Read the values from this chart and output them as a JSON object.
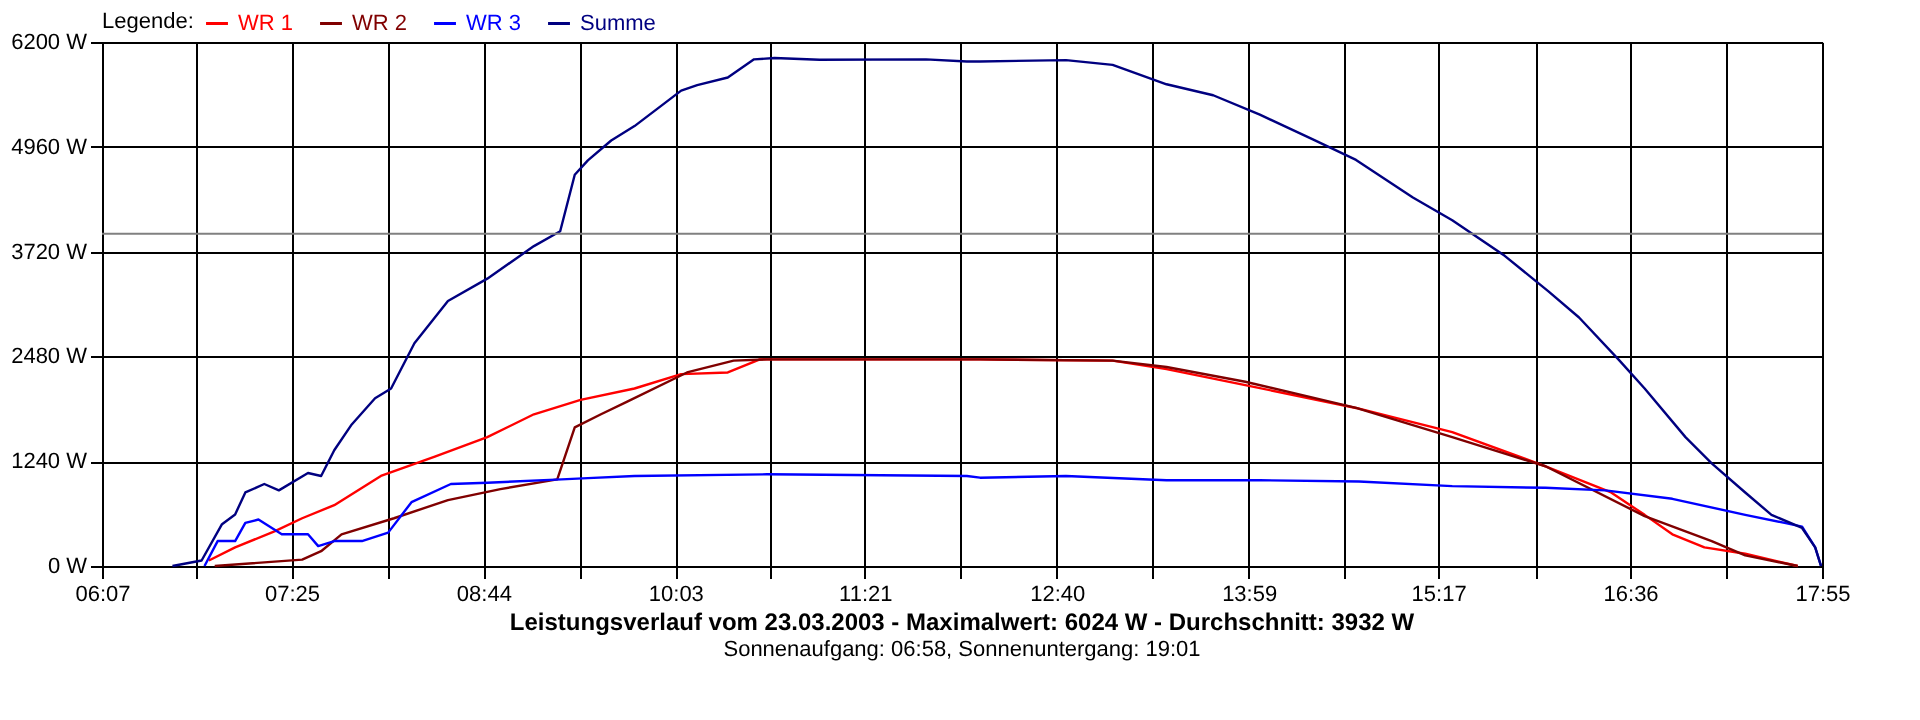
{
  "chart_data": {
    "type": "line",
    "title": "Leistungsverlauf vom 23.03.2003 - Maximalwert: 6024 W - Durchschnitt: 3932 W",
    "subtitle": "Sonnenaufgang: 06:58, Sonnenuntergang: 19:01",
    "legend_title": "Legende:",
    "legend": "top left",
    "grid": true,
    "marker": "none",
    "line_style": "solid",
    "xlim": [
      6.1167,
      17.9167
    ],
    "xticks": [
      {
        "value": 6.1167,
        "label": "06:07"
      },
      {
        "value": 6.7667,
        "label": null
      },
      {
        "value": 7.4167,
        "label": "07:25"
      },
      {
        "value": 8.075,
        "label": null
      },
      {
        "value": 8.7333,
        "label": "08:44"
      },
      {
        "value": 9.3917,
        "label": null
      },
      {
        "value": 10.05,
        "label": "10:03"
      },
      {
        "value": 10.7,
        "label": null
      },
      {
        "value": 11.35,
        "label": "11:21"
      },
      {
        "value": 12.0083,
        "label": null
      },
      {
        "value": 12.6667,
        "label": "12:40"
      },
      {
        "value": 13.325,
        "label": null
      },
      {
        "value": 13.9833,
        "label": "13:59"
      },
      {
        "value": 14.6333,
        "label": null
      },
      {
        "value": 15.2833,
        "label": "15:17"
      },
      {
        "value": 15.95,
        "label": null
      },
      {
        "value": 16.6,
        "label": "16:36"
      },
      {
        "value": 17.2583,
        "label": null
      },
      {
        "value": 17.9167,
        "label": "17:55"
      }
    ],
    "ylim": [
      0,
      6200
    ],
    "yticks": [
      {
        "value": 0,
        "label": "0 W"
      },
      {
        "value": 1240,
        "label": "1240 W"
      },
      {
        "value": 2480,
        "label": "2480 W"
      },
      {
        "value": 3720,
        "label": "3720 W"
      },
      {
        "value": 4960,
        "label": "4960 W"
      },
      {
        "value": 6200,
        "label": "6200 W"
      }
    ],
    "ref_lines": [
      {
        "axis": "y",
        "value": 3932,
        "label": null,
        "color": "#808080"
      }
    ],
    "series": [
      {
        "name": "WR 1",
        "color": "#ff0000",
        "x": [
          6.85,
          7.03,
          7.3,
          7.49,
          7.71,
          8.03,
          8.4,
          8.76,
          9.08,
          9.4,
          9.77,
          10.09,
          10.41,
          10.63,
          12.05,
          12.14,
          13.05,
          13.42,
          13.96,
          14.72,
          15.38,
          16.02,
          16.47,
          16.7,
          16.89,
          17.11,
          17.39,
          17.75
        ],
        "values": [
          65,
          220,
          410,
          565,
          720,
          1065,
          1295,
          1525,
          1795,
          1965,
          2100,
          2270,
          2290,
          2445,
          2445,
          2445,
          2430,
          2330,
          2140,
          1870,
          1585,
          1180,
          870,
          605,
          375,
          220,
          145,
          0
        ]
      },
      {
        "name": "WR 2",
        "color": "#800000",
        "x": [
          6.89,
          7.49,
          7.62,
          7.76,
          8.12,
          8.49,
          8.85,
          9.24,
          9.36,
          9.54,
          9.72,
          10.13,
          10.45,
          10.68,
          12.05,
          12.14,
          13.05,
          13.42,
          13.96,
          14.72,
          15.38,
          16.02,
          16.7,
          17.16,
          17.39,
          17.75
        ],
        "values": [
          0,
          75,
          175,
          375,
          565,
          780,
          910,
          1025,
          1640,
          1795,
          1945,
          2290,
          2430,
          2445,
          2445,
          2445,
          2430,
          2355,
          2180,
          1870,
          1525,
          1180,
          590,
          295,
          125,
          0
        ]
      },
      {
        "name": "WR 3",
        "color": "#0000ff",
        "x": [
          6.82,
          6.91,
          7.03,
          7.1,
          7.19,
          7.35,
          7.53,
          7.6,
          7.71,
          7.9,
          8.08,
          8.24,
          8.51,
          8.76,
          9.27,
          9.45,
          9.77,
          10.68,
          12.05,
          12.14,
          12.73,
          13.42,
          14.06,
          14.74,
          15.38,
          16.02,
          16.43,
          16.89,
          17.39,
          17.66,
          17.78,
          17.87,
          17.91
        ],
        "values": [
          0,
          295,
          295,
          510,
          550,
          375,
          375,
          235,
          295,
          295,
          395,
          755,
          970,
          985,
          1025,
          1040,
          1065,
          1085,
          1065,
          1045,
          1065,
          1015,
          1015,
          1000,
          945,
          925,
          895,
          795,
          605,
          510,
          465,
          220,
          0
        ]
      },
      {
        "name": "Summe",
        "color": "#000080",
        "x": [
          6.6,
          6.8,
          6.94,
          7.03,
          7.1,
          7.23,
          7.33,
          7.53,
          7.62,
          7.71,
          7.83,
          7.99,
          8.1,
          8.26,
          8.49,
          8.76,
          9.08,
          9.26,
          9.36,
          9.45,
          9.61,
          9.77,
          10.09,
          10.2,
          10.41,
          10.59,
          10.73,
          11.04,
          11.77,
          12.05,
          12.14,
          12.73,
          13.05,
          13.42,
          13.74,
          14.06,
          14.42,
          14.72,
          15.11,
          15.38,
          15.74,
          16.04,
          16.25,
          16.52,
          16.7,
          16.98,
          17.16,
          17.39,
          17.57,
          17.78,
          17.87,
          17.91
        ],
        "values": [
          0,
          65,
          495,
          610,
          870,
          970,
          895,
          1100,
          1065,
          1370,
          1675,
          1985,
          2100,
          2635,
          3135,
          3400,
          3785,
          3960,
          4630,
          4800,
          5035,
          5205,
          5625,
          5690,
          5780,
          5995,
          6010,
          5990,
          5995,
          5970,
          5970,
          5985,
          5930,
          5700,
          5570,
          5340,
          5050,
          4805,
          4360,
          4090,
          3670,
          3250,
          2940,
          2445,
          2100,
          1525,
          1215,
          870,
          605,
          450,
          220,
          0
        ]
      }
    ]
  }
}
